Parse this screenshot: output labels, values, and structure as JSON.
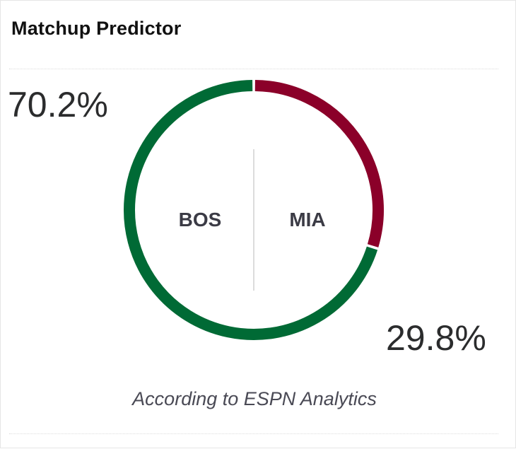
{
  "widget": {
    "title": "Matchup Predictor",
    "caption": "According to ESPN Analytics"
  },
  "chart_data": {
    "type": "pie",
    "categories": [
      "BOS",
      "MIA"
    ],
    "values": [
      70.2,
      29.8
    ],
    "labels": [
      "70.2%",
      "29.8%"
    ],
    "colors": [
      "#006A35",
      "#8B0029"
    ],
    "divider_color": "#d0d0d0"
  }
}
